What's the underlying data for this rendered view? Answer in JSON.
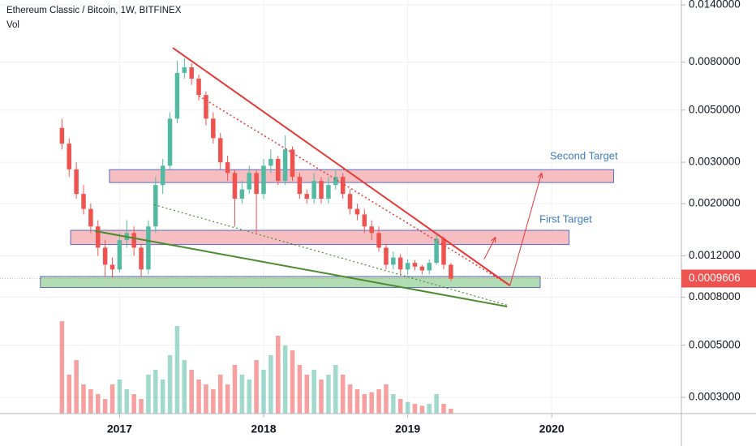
{
  "chart_data": {
    "type": "candlestick",
    "title": "Ethereum Classic / Bitcoin, 1W, BITFINEX",
    "volume_label": "Vol",
    "log_y": true,
    "grid": true,
    "up_color": "#53b9a2",
    "down_color": "#ef5350",
    "xlim": [
      2016.17,
      2020.9
    ],
    "xticks": [
      2017,
      2018,
      2019,
      2020
    ],
    "ylim": [
      0.000256,
      0.0147
    ],
    "yticks": [
      {
        "value": 0.014,
        "label": "0.0140000"
      },
      {
        "value": 0.008,
        "label": "0.0080000"
      },
      {
        "value": 0.005,
        "label": "0.0050000"
      },
      {
        "value": 0.003,
        "label": "0.0030000"
      },
      {
        "value": 0.002,
        "label": "0.0020000"
      },
      {
        "value": 0.0012,
        "label": "0.0012000"
      },
      {
        "value": 0.0008,
        "label": "0.0008000"
      },
      {
        "value": 0.0005,
        "label": "0.0005000"
      },
      {
        "value": 0.0003,
        "label": "0.0003000"
      }
    ],
    "last_price": 0.0009606,
    "candles": {
      "x": [
        2016.6,
        2016.65,
        2016.7,
        2016.75,
        2016.8,
        2016.85,
        2016.9,
        2016.95,
        2017.0,
        2017.05,
        2017.1,
        2017.15,
        2017.2,
        2017.25,
        2017.3,
        2017.35,
        2017.4,
        2017.45,
        2017.5,
        2017.55,
        2017.6,
        2017.65,
        2017.7,
        2017.75,
        2017.8,
        2017.85,
        2017.9,
        2017.95,
        2018.0,
        2018.05,
        2018.1,
        2018.15,
        2018.2,
        2018.25,
        2018.3,
        2018.35,
        2018.4,
        2018.45,
        2018.5,
        2018.55,
        2018.6,
        2018.65,
        2018.7,
        2018.75,
        2018.8,
        2018.85,
        2018.9,
        2018.95,
        2019.0,
        2019.05,
        2019.1,
        2019.15,
        2019.2,
        2019.25,
        2019.3
      ],
      "open": [
        0.0042,
        0.0036,
        0.0028,
        0.0022,
        0.0019,
        0.0016,
        0.0013,
        0.0011,
        0.00105,
        0.0014,
        0.0015,
        0.0013,
        0.00105,
        0.0016,
        0.0024,
        0.0029,
        0.0046,
        0.0072,
        0.0076,
        0.0068,
        0.0058,
        0.0046,
        0.0038,
        0.003,
        0.0027,
        0.0021,
        0.0023,
        0.0027,
        0.0022,
        0.0029,
        0.0031,
        0.0025,
        0.0034,
        0.0026,
        0.0022,
        0.0021,
        0.0025,
        0.0021,
        0.0024,
        0.0026,
        0.0022,
        0.0019,
        0.0018,
        0.0016,
        0.0015,
        0.0013,
        0.0011,
        0.00118,
        0.00105,
        0.00112,
        0.00108,
        0.00104,
        0.00112,
        0.00142,
        0.0011
      ],
      "high": [
        0.0046,
        0.0038,
        0.003,
        0.0024,
        0.002,
        0.0017,
        0.0014,
        0.00118,
        0.0015,
        0.0017,
        0.0016,
        0.00135,
        0.0017,
        0.0026,
        0.0031,
        0.0049,
        0.0081,
        0.0083,
        0.0079,
        0.0071,
        0.006,
        0.0049,
        0.004,
        0.0032,
        0.0028,
        0.0025,
        0.0029,
        0.0028,
        0.0031,
        0.0034,
        0.0032,
        0.0039,
        0.0035,
        0.0027,
        0.0023,
        0.0027,
        0.0026,
        0.0026,
        0.0028,
        0.0027,
        0.0023,
        0.002,
        0.0019,
        0.0017,
        0.0016,
        0.00135,
        0.00125,
        0.00122,
        0.00116,
        0.00115,
        0.0011,
        0.00116,
        0.0015,
        0.00145,
        0.00112
      ],
      "low": [
        0.0034,
        0.0026,
        0.0021,
        0.0018,
        0.0015,
        0.0012,
        0.00098,
        0.00097,
        0.00102,
        0.0013,
        0.0012,
        0.00098,
        0.001,
        0.0015,
        0.0022,
        0.0028,
        0.0044,
        0.0068,
        0.0064,
        0.0055,
        0.0043,
        0.0036,
        0.0028,
        0.0025,
        0.0016,
        0.002,
        0.0022,
        0.0015,
        0.0021,
        0.0027,
        0.0024,
        0.0024,
        0.0025,
        0.0021,
        0.002,
        0.002,
        0.002,
        0.002,
        0.0023,
        0.0021,
        0.0018,
        0.0017,
        0.0015,
        0.0014,
        0.00125,
        0.00105,
        0.00105,
        0.001,
        0.001,
        0.00104,
        0.001,
        0.001,
        0.0011,
        0.00105,
        0.00094
      ],
      "close": [
        0.0036,
        0.0028,
        0.0022,
        0.0019,
        0.0016,
        0.0013,
        0.0011,
        0.00105,
        0.0014,
        0.0015,
        0.0013,
        0.00105,
        0.0016,
        0.0024,
        0.0029,
        0.0046,
        0.0072,
        0.0076,
        0.0068,
        0.0058,
        0.0046,
        0.0038,
        0.003,
        0.0027,
        0.0021,
        0.0023,
        0.0027,
        0.0022,
        0.0029,
        0.0031,
        0.0025,
        0.0034,
        0.0026,
        0.0022,
        0.0021,
        0.0025,
        0.0021,
        0.0024,
        0.0026,
        0.0022,
        0.0019,
        0.0018,
        0.0016,
        0.0015,
        0.0013,
        0.0011,
        0.00118,
        0.00105,
        0.00112,
        0.00108,
        0.00104,
        0.00112,
        0.00142,
        0.0011,
        0.00096
      ]
    },
    "volume": {
      "vlim": [
        0,
        100
      ],
      "values": [
        95,
        40,
        55,
        30,
        25,
        20,
        15,
        30,
        35,
        25,
        20,
        15,
        40,
        45,
        35,
        60,
        90,
        55,
        45,
        35,
        30,
        25,
        40,
        30,
        50,
        40,
        35,
        55,
        45,
        60,
        80,
        70,
        65,
        50,
        40,
        45,
        35,
        40,
        50,
        40,
        30,
        25,
        20,
        22,
        25,
        30,
        20,
        15,
        12,
        10,
        8,
        10,
        20,
        10,
        5
      ]
    },
    "zones": [
      {
        "x": [
          2016.93,
          2020.43
        ],
        "y": [
          0.00246,
          0.00279
        ],
        "color": "#f4b3b6",
        "border": "#5c6bc0"
      },
      {
        "x": [
          2016.66,
          2020.12
        ],
        "y": [
          0.00134,
          0.00154
        ],
        "color": "#f4b3b6",
        "border": "#5c6bc0"
      },
      {
        "x": [
          2016.45,
          2019.92
        ],
        "y": [
          0.00088,
          0.00098
        ],
        "color": "#a5d6a7",
        "border": "#5c6bc0"
      }
    ],
    "trendlines": [
      {
        "x": [
          2017.37,
          2019.71
        ],
        "y": [
          0.0092,
          0.000897
        ],
        "color": "#e53935",
        "width": 2,
        "dashed": false,
        "arrow": false
      },
      {
        "x": [
          2017.55,
          2019.71
        ],
        "y": [
          0.00575,
          0.000897
        ],
        "color": "#e53935",
        "width": 1.5,
        "dashed": true,
        "arrow": false
      },
      {
        "x": [
          2016.83,
          2019.69
        ],
        "y": [
          0.00153,
          0.00073
        ],
        "color": "#4c8a2e",
        "width": 2,
        "dashed": false,
        "arrow": false
      },
      {
        "x": [
          2017.24,
          2019.69
        ],
        "y": [
          0.00198,
          0.00074
        ],
        "color": "#4c8a2e",
        "width": 1.2,
        "dashed": true,
        "arrow": false
      },
      {
        "x": [
          2019.53,
          2019.61
        ],
        "y": [
          0.00116,
          0.00144
        ],
        "color": "#e53935",
        "width": 1,
        "dashed": false,
        "arrow": true
      },
      {
        "x": [
          2019.71,
          2019.93
        ],
        "y": [
          0.000897,
          0.0027
        ],
        "color": "#e53935",
        "width": 1,
        "dashed": false,
        "arrow": true
      }
    ],
    "annotations": {
      "second_target": "Second Target",
      "first_target": "First Target"
    }
  }
}
